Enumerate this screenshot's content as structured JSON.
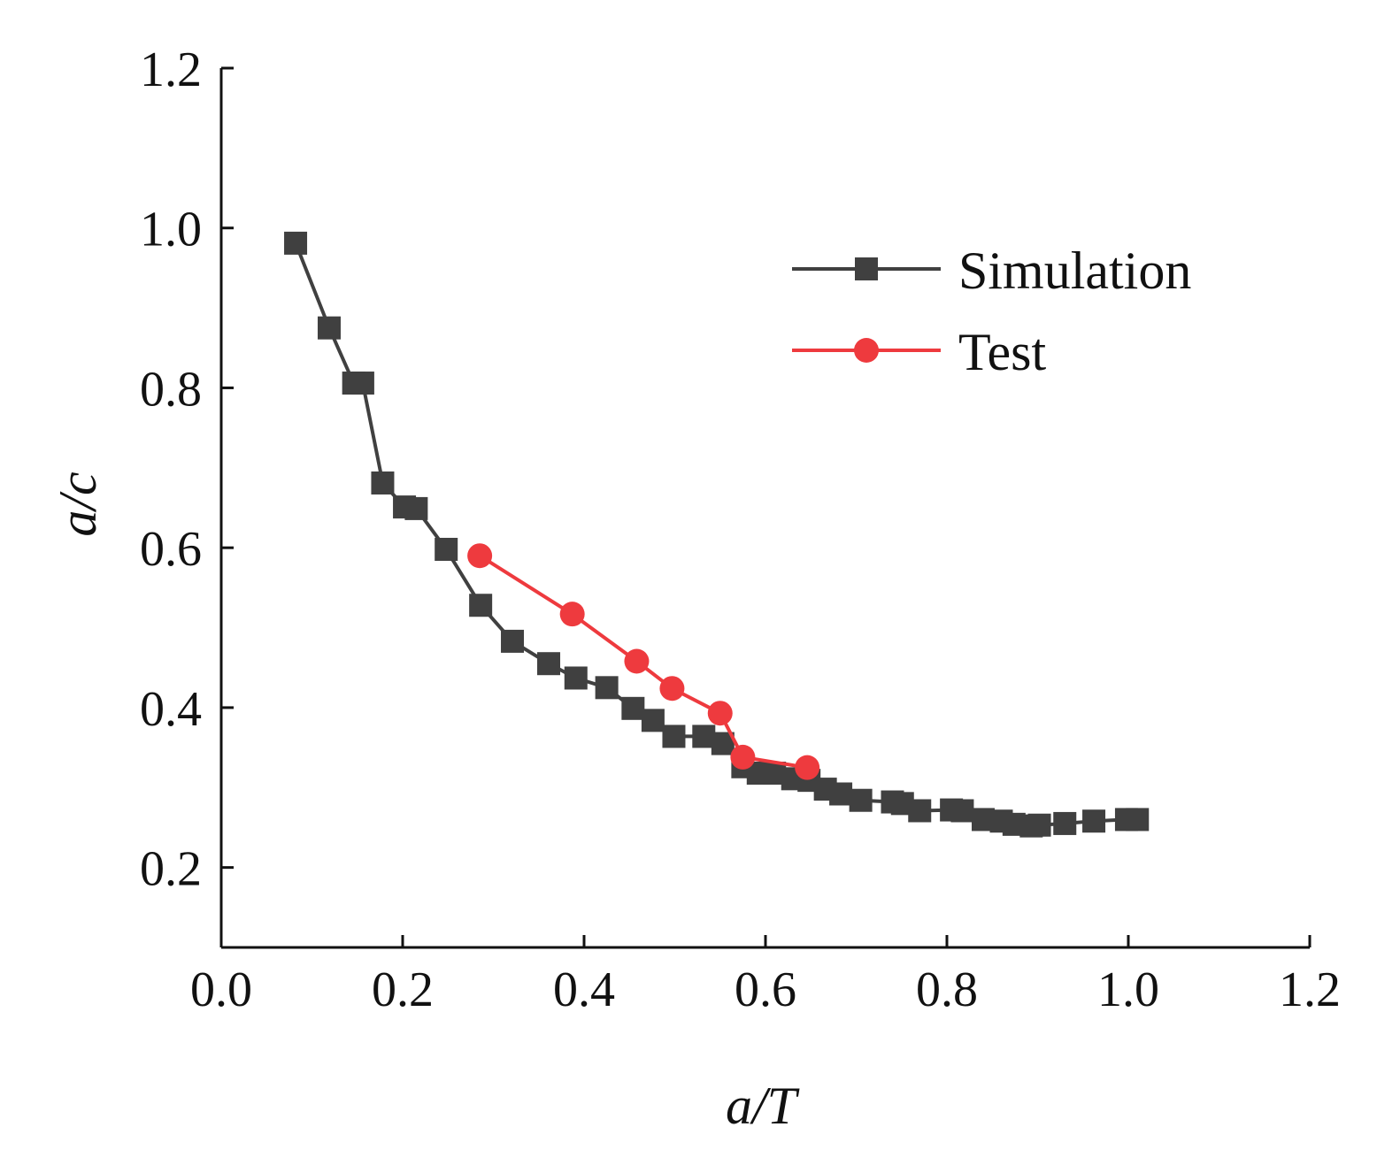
{
  "chart_data": {
    "type": "line",
    "title": "",
    "xlabel": "a/T",
    "ylabel": "a/c",
    "xlim": [
      0.0,
      1.2
    ],
    "ylim": [
      0.1,
      1.2
    ],
    "xticks": [
      "0.0",
      "0.2",
      "0.4",
      "0.6",
      "0.8",
      "1.0",
      "1.2"
    ],
    "yticks": [
      "0.2",
      "0.4",
      "0.6",
      "0.8",
      "1.0",
      "1.2"
    ],
    "grid": false,
    "legend_position": "top-right",
    "series": [
      {
        "name": "Simulation",
        "color": "#404040",
        "marker": "square",
        "x": [
          0.082,
          0.119,
          0.146,
          0.156,
          0.178,
          0.202,
          0.215,
          0.248,
          0.286,
          0.321,
          0.361,
          0.391,
          0.425,
          0.454,
          0.476,
          0.499,
          0.532,
          0.553,
          0.575,
          0.592,
          0.61,
          0.63,
          0.648,
          0.666,
          0.683,
          0.705,
          0.74,
          0.751,
          0.77,
          0.805,
          0.817,
          0.84,
          0.86,
          0.874,
          0.893,
          0.902,
          0.93,
          0.962,
          0.998,
          1.01
        ],
        "y": [
          0.981,
          0.875,
          0.806,
          0.806,
          0.681,
          0.651,
          0.649,
          0.598,
          0.528,
          0.483,
          0.455,
          0.437,
          0.425,
          0.399,
          0.384,
          0.364,
          0.364,
          0.355,
          0.326,
          0.318,
          0.318,
          0.311,
          0.309,
          0.298,
          0.292,
          0.284,
          0.282,
          0.28,
          0.271,
          0.272,
          0.271,
          0.26,
          0.258,
          0.254,
          0.252,
          0.253,
          0.255,
          0.258,
          0.26,
          0.26
        ]
      },
      {
        "name": "Test",
        "color": "#ee3a3e",
        "marker": "circle",
        "x": [
          0.285,
          0.387,
          0.458,
          0.497,
          0.55,
          0.575,
          0.646
        ],
        "y": [
          0.59,
          0.517,
          0.458,
          0.424,
          0.393,
          0.338,
          0.325
        ]
      }
    ]
  }
}
